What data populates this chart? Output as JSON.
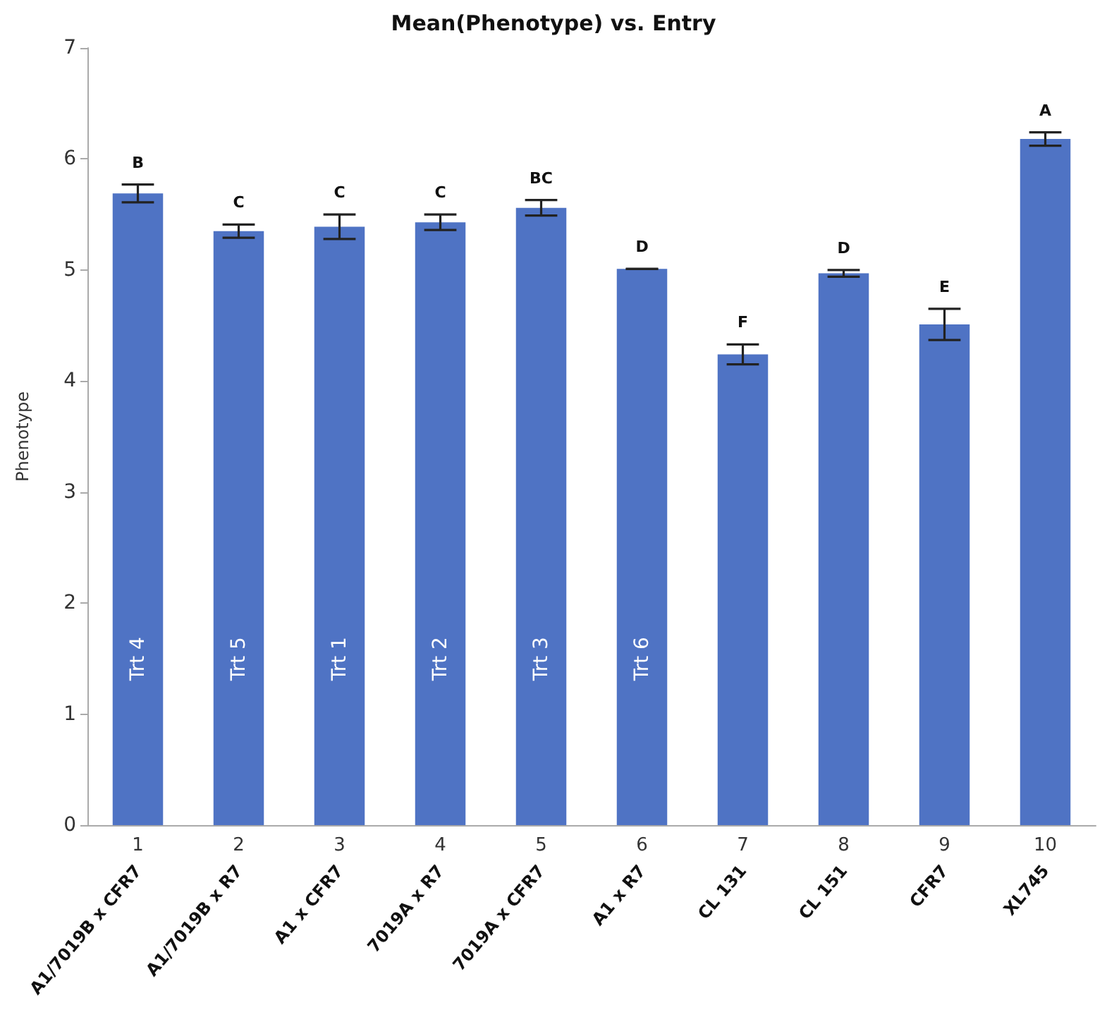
{
  "chart_data": {
    "type": "bar",
    "title": "Mean(Phenotype) vs. Entry",
    "ylabel": "Phenotype",
    "categories": [
      "A1/7019B x CFR7",
      "A1/7019B x R7",
      "A1 x CFR7",
      "7019A x R7",
      "7019A x CFR7",
      "A1 x R7",
      "CL 131",
      "CL 151",
      "CFR7",
      "XL745"
    ],
    "values": [
      5.69,
      5.35,
      5.39,
      5.43,
      5.56,
      5.01,
      4.24,
      4.97,
      4.51,
      6.18
    ],
    "errors": [
      0.08,
      0.06,
      0.11,
      0.07,
      0.07,
      0,
      0.09,
      0.03,
      0.14,
      0.06
    ],
    "value_labels": [
      "B",
      "C",
      "C",
      "C",
      "BC",
      "D",
      "F",
      "D",
      "E",
      "A"
    ],
    "color": "#4f73c4",
    "ylim": [
      0,
      7
    ],
    "yticks": [
      0,
      1,
      2,
      3,
      4,
      5,
      6,
      7
    ],
    "grid": false,
    "annotations": [
      "1",
      "2",
      "3",
      "4",
      "5",
      "6",
      "7",
      "8",
      "9",
      "10",
      "Trt 4",
      "Trt 5",
      "Trt 1",
      "Trt 2",
      "Trt 3",
      "Trt 6"
    ]
  }
}
